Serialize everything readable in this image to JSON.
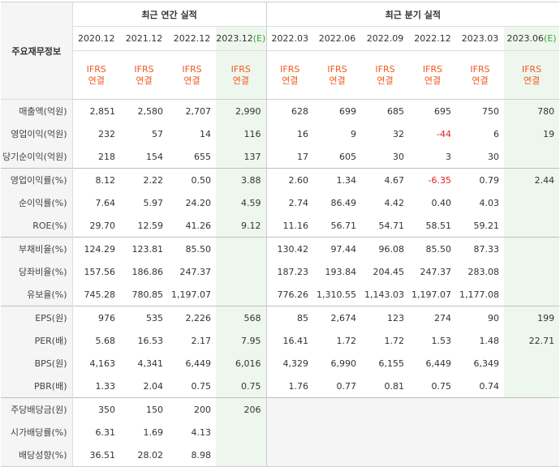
{
  "header": {
    "row_label": "주요재무정보",
    "annual_title": "최근 연간 실적",
    "quarter_title": "최근 분기 실적",
    "periods": [
      "2020.12",
      "2021.12",
      "2022.12",
      "2023.12",
      "2022.03",
      "2022.06",
      "2022.09",
      "2022.12",
      "2023.03",
      "2023.06"
    ],
    "est_mark": "(E)",
    "basis_top": "IFRS",
    "basis_bottom": "연결"
  },
  "rows": [
    {
      "label": "매출액(억원)",
      "values": [
        "2,851",
        "2,580",
        "2,707",
        "2,990",
        "628",
        "699",
        "685",
        "695",
        "750",
        "780"
      ]
    },
    {
      "label": "영업이익(억원)",
      "values": [
        "232",
        "57",
        "14",
        "116",
        "16",
        "9",
        "32",
        "-44",
        "6",
        "19"
      ]
    },
    {
      "label": "당기순이익(억원)",
      "values": [
        "218",
        "154",
        "655",
        "137",
        "17",
        "605",
        "30",
        "3",
        "30",
        ""
      ]
    },
    {
      "label": "영업이익률(%)",
      "values": [
        "8.12",
        "2.22",
        "0.50",
        "3.88",
        "2.60",
        "1.34",
        "4.67",
        "-6.35",
        "0.79",
        "2.44"
      ]
    },
    {
      "label": "순이익률(%)",
      "values": [
        "7.64",
        "5.97",
        "24.20",
        "4.59",
        "2.74",
        "86.49",
        "4.42",
        "0.40",
        "4.03",
        ""
      ]
    },
    {
      "label": "ROE(%)",
      "values": [
        "29.70",
        "12.59",
        "41.26",
        "9.12",
        "11.16",
        "56.71",
        "54.71",
        "58.51",
        "59.21",
        ""
      ]
    },
    {
      "label": "부채비율(%)",
      "values": [
        "124.29",
        "123.81",
        "85.50",
        "",
        "130.42",
        "97.44",
        "96.08",
        "85.50",
        "87.33",
        ""
      ]
    },
    {
      "label": "당좌비율(%)",
      "values": [
        "157.56",
        "186.86",
        "247.37",
        "",
        "187.23",
        "193.84",
        "204.45",
        "247.37",
        "283.08",
        ""
      ]
    },
    {
      "label": "유보율(%)",
      "values": [
        "745.28",
        "780.85",
        "1,197.07",
        "",
        "776.26",
        "1,310.55",
        "1,143.03",
        "1,197.07",
        "1,177.08",
        ""
      ]
    },
    {
      "label": "EPS(원)",
      "values": [
        "976",
        "535",
        "2,226",
        "568",
        "85",
        "2,674",
        "123",
        "274",
        "90",
        "199"
      ]
    },
    {
      "label": "PER(배)",
      "values": [
        "5.68",
        "16.53",
        "2.17",
        "7.95",
        "16.41",
        "1.72",
        "1.72",
        "1.53",
        "1.48",
        "22.71"
      ]
    },
    {
      "label": "BPS(원)",
      "values": [
        "4,163",
        "4,341",
        "6,449",
        "6,016",
        "4,329",
        "6,990",
        "6,155",
        "6,449",
        "6,349",
        ""
      ]
    },
    {
      "label": "PBR(배)",
      "values": [
        "1.33",
        "2.04",
        "0.75",
        "0.75",
        "1.76",
        "0.77",
        "0.81",
        "0.75",
        "0.74",
        ""
      ]
    },
    {
      "label": "주당배당금(원)",
      "values": [
        "350",
        "150",
        "200",
        "206",
        "",
        "",
        "",
        "",
        "",
        ""
      ]
    },
    {
      "label": "시가배당률(%)",
      "values": [
        "6.31",
        "1.69",
        "4.13",
        "",
        "",
        "",
        "",
        "",
        "",
        ""
      ]
    },
    {
      "label": "배당성향(%)",
      "values": [
        "36.51",
        "28.02",
        "8.98",
        "",
        "",
        "",
        "",
        "",
        "",
        ""
      ]
    }
  ],
  "colors": {
    "basis": "#f05a1e",
    "estimate_mark": "#39a339",
    "negative": "#e0201f",
    "estimate_bg": "#eef7ee"
  }
}
